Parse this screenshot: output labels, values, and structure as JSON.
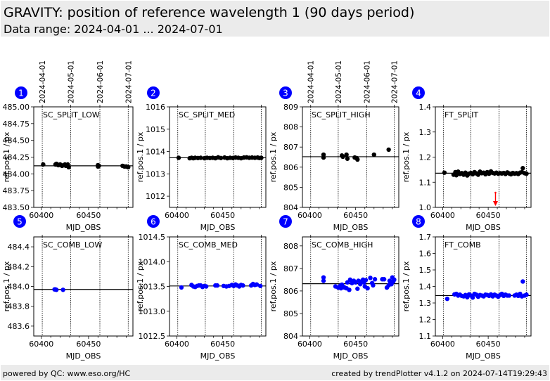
{
  "header": {
    "title": "GRAVITY: position of reference wavelength 1 (90 days period)",
    "subtitle": "Data range: 2024-04-01 ... 2024-07-01"
  },
  "footer": {
    "left": "powered by QC: www.eso.org/HC",
    "right": "created by trendPlotter v4.1.2 on 2024-07-14T19:29:43"
  },
  "colors": {
    "split_marker": "#000000",
    "comb_marker": "#0000ff",
    "badge": "#0000ff",
    "outlier_arrow": "#ff0000",
    "header_bg": "#ebebeb"
  },
  "date_markers": {
    "labels": [
      "2024-04-01",
      "2024-05-01",
      "2024-06-01",
      "2024-07-01"
    ],
    "mjd": [
      60401,
      60431,
      60462,
      60492
    ]
  },
  "chart_data": [
    {
      "id": 1,
      "type": "scatter",
      "title": "SC_SPLIT_LOW",
      "xlabel": "MJD_OBS",
      "ylabel": "ref.pos.1 / px",
      "xlim": [
        60392,
        60497
      ],
      "ylim": [
        483.5,
        485.0
      ],
      "xticks": [
        60400,
        60450
      ],
      "yticks": [
        "483.50",
        "483.75",
        "484.00",
        "484.25",
        "484.50",
        "484.75",
        "485.00"
      ],
      "ytick_values": [
        483.5,
        483.75,
        484.0,
        484.25,
        484.5,
        484.75,
        485.0
      ],
      "reference_line": 484.12,
      "color": "#000000",
      "x": [
        60402,
        60415,
        60416,
        60417,
        60418,
        60420,
        60421,
        60422,
        60424,
        60425,
        60426,
        60427,
        60428,
        60429,
        60460,
        60460,
        60461,
        60486,
        60488,
        60490,
        60492
      ],
      "y": [
        484.14,
        484.14,
        484.15,
        484.14,
        484.13,
        484.14,
        484.13,
        484.12,
        484.13,
        484.14,
        484.12,
        484.13,
        484.14,
        484.1,
        484.13,
        484.11,
        484.12,
        484.12,
        484.11,
        484.11,
        484.1
      ]
    },
    {
      "id": 2,
      "type": "scatter",
      "title": "SC_SPLIT_MED",
      "xlabel": "MJD_OBS",
      "ylabel": "ref.pos.1 / px",
      "xlim": [
        60392,
        60497
      ],
      "ylim": [
        1011.5,
        1016.0
      ],
      "xticks": [
        60400,
        60450
      ],
      "yticks": [
        "1012",
        "1013",
        "1014",
        "1015",
        "1016"
      ],
      "ytick_values": [
        1012,
        1013,
        1014,
        1015,
        1016
      ],
      "reference_line": 1013.72,
      "color": "#000000",
      "x": [
        60402,
        60414,
        60416,
        60418,
        60420,
        60423,
        60426,
        60430,
        60433,
        60436,
        60439,
        60442,
        60445,
        60448,
        60452,
        60455,
        60458,
        60461,
        60464,
        60467,
        60470,
        60473,
        60476,
        60479,
        60482,
        60485,
        60488,
        60490,
        60492
      ],
      "y": [
        1013.72,
        1013.7,
        1013.72,
        1013.7,
        1013.72,
        1013.71,
        1013.72,
        1013.7,
        1013.72,
        1013.71,
        1013.72,
        1013.7,
        1013.74,
        1013.71,
        1013.73,
        1013.7,
        1013.72,
        1013.71,
        1013.73,
        1013.72,
        1013.7,
        1013.73,
        1013.74,
        1013.72,
        1013.73,
        1013.72,
        1013.73,
        1013.71,
        1013.72
      ]
    },
    {
      "id": 3,
      "type": "scatter",
      "title": "SC_SPLIT_HIGH",
      "xlabel": "MJD_OBS",
      "ylabel": "ref.pos.1 / px",
      "xlim": [
        60392,
        60497
      ],
      "ylim": [
        804,
        809
      ],
      "xticks": [
        60400,
        60450
      ],
      "yticks": [
        "804",
        "805",
        "806",
        "807",
        "808",
        "809"
      ],
      "ytick_values": [
        804,
        805,
        806,
        807,
        808,
        809
      ],
      "reference_line": 806.52,
      "color": "#000000",
      "x": [
        60415,
        60415,
        60435,
        60436,
        60440,
        60441,
        60449,
        60451,
        60452,
        60470,
        60486
      ],
      "y": [
        806.62,
        806.48,
        806.58,
        806.52,
        806.62,
        806.42,
        806.48,
        806.45,
        806.38,
        806.62,
        806.87
      ]
    },
    {
      "id": 4,
      "type": "scatter",
      "title": "FT_SPLIT",
      "xlabel": "MJD_OBS",
      "ylabel": "ref.pos.1 / px",
      "xlim": [
        60392,
        60497
      ],
      "ylim": [
        1.0,
        1.4
      ],
      "xticks": [
        60400,
        60450
      ],
      "yticks": [
        "1.0",
        "1.1",
        "1.2",
        "1.3",
        "1.4"
      ],
      "ytick_values": [
        1.0,
        1.1,
        1.2,
        1.3,
        1.4
      ],
      "reference_line": 1.136,
      "color": "#000000",
      "x": [
        60402,
        60412,
        60414,
        60415,
        60417,
        60419,
        60421,
        60423,
        60425,
        60427,
        60429,
        60431,
        60433,
        60435,
        60437,
        60439,
        60441,
        60443,
        60445,
        60447,
        60449,
        60451,
        60453,
        60455,
        60457,
        60459,
        60461,
        60463,
        60465,
        60467,
        60469,
        60471,
        60473,
        60475,
        60477,
        60479,
        60481,
        60483,
        60485,
        60487,
        60488,
        60490,
        60492
      ],
      "y": [
        1.138,
        1.13,
        1.14,
        1.128,
        1.142,
        1.133,
        1.136,
        1.13,
        1.138,
        1.127,
        1.134,
        1.137,
        1.132,
        1.14,
        1.135,
        1.13,
        1.142,
        1.136,
        1.138,
        1.132,
        1.14,
        1.134,
        1.143,
        1.137,
        1.135,
        1.138,
        1.134,
        1.136,
        1.135,
        1.137,
        1.133,
        1.139,
        1.135,
        1.132,
        1.137,
        1.134,
        1.136,
        1.133,
        1.138,
        1.14,
        1.156,
        1.136,
        1.134
      ],
      "outliers": [
        {
          "x": 60458,
          "direction": "below"
        }
      ]
    },
    {
      "id": 5,
      "type": "scatter",
      "title": "SC_COMB_LOW",
      "xlabel": "MJD_OBS",
      "ylabel": "ref.pos.1 / px",
      "xlim": [
        60392,
        60497
      ],
      "ylim": [
        483.5,
        484.5
      ],
      "xticks": [
        60400,
        60450
      ],
      "yticks": [
        "483.6",
        "483.8",
        "484.0",
        "484.2",
        "484.4"
      ],
      "ytick_values": [
        483.6,
        483.8,
        484.0,
        484.2,
        484.4
      ],
      "reference_line": 483.97,
      "color": "#0000ff",
      "x": [
        60414,
        60415,
        60416,
        60423
      ],
      "y": [
        483.97,
        483.97,
        483.966,
        483.966
      ]
    },
    {
      "id": 6,
      "type": "scatter",
      "title": "SC_COMB_MED",
      "xlabel": "MJD_OBS",
      "ylabel": "ref.pos.1 / px",
      "xlim": [
        60392,
        60497
      ],
      "ylim": [
        1012.5,
        1014.5
      ],
      "xticks": [
        60400,
        60450
      ],
      "yticks": [
        "1012.5",
        "1013.0",
        "1013.5",
        "1014.0",
        "1014.5"
      ],
      "ytick_values": [
        1012.5,
        1013.0,
        1013.5,
        1014.0,
        1014.5
      ],
      "reference_line": 1013.51,
      "color": "#0000ff",
      "x": [
        60405,
        60416,
        60418,
        60420,
        60422,
        60424,
        60426,
        60428,
        60430,
        60432,
        60442,
        60444,
        60451,
        60454,
        60457,
        60460,
        60462,
        60464,
        60466,
        60468,
        60470,
        60472,
        60481,
        60483,
        60485,
        60487,
        60491
      ],
      "y": [
        1013.48,
        1013.53,
        1013.5,
        1013.49,
        1013.51,
        1013.52,
        1013.52,
        1013.49,
        1013.51,
        1013.5,
        1013.52,
        1013.52,
        1013.51,
        1013.5,
        1013.51,
        1013.53,
        1013.51,
        1013.54,
        1013.52,
        1013.5,
        1013.53,
        1013.52,
        1013.52,
        1013.55,
        1013.53,
        1013.54,
        1013.51
      ]
    },
    {
      "id": 7,
      "type": "scatter",
      "title": "SC_COMB_HIGH",
      "xlabel": "MJD_OBS",
      "ylabel": "ref.pos.1 / px",
      "xlim": [
        60392,
        60497
      ],
      "ylim": [
        804,
        808.4
      ],
      "xticks": [
        60400,
        60450
      ],
      "yticks": [
        "804",
        "805",
        "806",
        "807",
        "808"
      ],
      "ytick_values": [
        804,
        805,
        806,
        807,
        808
      ],
      "reference_line": 806.32,
      "color": "#0000ff",
      "x": [
        60415,
        60415,
        60428,
        60431,
        60433,
        60434,
        60435,
        60437,
        60438,
        60440,
        60441,
        60443,
        60444,
        60446,
        60448,
        60450,
        60452,
        60453,
        60455,
        60456,
        60458,
        60459,
        60460,
        60461,
        60463,
        60466,
        60468,
        60469,
        60471,
        60479,
        60481,
        60484,
        60486,
        60487,
        60488,
        60489,
        60490,
        60491,
        60492
      ],
      "y": [
        806.6,
        806.45,
        806.2,
        806.15,
        806.22,
        806.12,
        806.28,
        806.18,
        806.15,
        806.12,
        806.38,
        806.05,
        806.5,
        806.35,
        806.45,
        806.38,
        806.1,
        806.45,
        806.3,
        806.42,
        806.5,
        806.38,
        806.2,
        806.48,
        806.12,
        806.58,
        806.35,
        806.25,
        806.52,
        806.52,
        806.52,
        806.15,
        806.25,
        806.45,
        806.35,
        806.3,
        806.6,
        806.42,
        806.5
      ]
    },
    {
      "id": 8,
      "type": "scatter",
      "title": "FT_COMB",
      "xlabel": "MJD_OBS",
      "ylabel": "ref.pos.1 / px",
      "xlim": [
        60392,
        60497
      ],
      "ylim": [
        1.1,
        1.7
      ],
      "xticks": [
        60400,
        60450
      ],
      "yticks": [
        "1.1",
        "1.2",
        "1.3",
        "1.4",
        "1.5",
        "1.6",
        "1.7"
      ],
      "ytick_values": [
        1.1,
        1.2,
        1.3,
        1.4,
        1.5,
        1.6,
        1.7
      ],
      "reference_line": 1.345,
      "color": "#0000ff",
      "x": [
        60405,
        60413,
        60415,
        60417,
        60419,
        60421,
        60423,
        60425,
        60427,
        60429,
        60431,
        60433,
        60435,
        60437,
        60439,
        60441,
        60443,
        60445,
        60447,
        60449,
        60451,
        60453,
        60455,
        60457,
        60459,
        60461,
        60463,
        60465,
        60467,
        60469,
        60471,
        60473,
        60479,
        60481,
        60483,
        60485,
        60487,
        60488,
        60490,
        60492
      ],
      "y": [
        1.325,
        1.352,
        1.355,
        1.345,
        1.35,
        1.343,
        1.34,
        1.348,
        1.335,
        1.352,
        1.345,
        1.333,
        1.355,
        1.35,
        1.338,
        1.348,
        1.345,
        1.34,
        1.35,
        1.348,
        1.343,
        1.352,
        1.34,
        1.35,
        1.345,
        1.338,
        1.348,
        1.355,
        1.343,
        1.35,
        1.345,
        1.345,
        1.345,
        1.35,
        1.343,
        1.355,
        1.34,
        1.43,
        1.345,
        1.35
      ]
    }
  ]
}
